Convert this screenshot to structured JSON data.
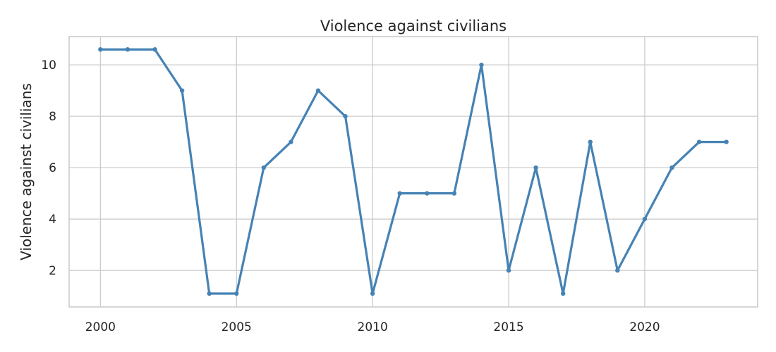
{
  "chart_data": {
    "type": "line",
    "title": "Violence against civilians",
    "xlabel": "",
    "ylabel": "Violence against civilians",
    "xlim": [
      1998.85,
      2024.15
    ],
    "ylim": [
      0.58,
      11.1
    ],
    "xticks": [
      2000,
      2005,
      2010,
      2015,
      2020
    ],
    "yticks": [
      2,
      4,
      6,
      8,
      10
    ],
    "grid": true,
    "color": "#4682b4",
    "x": [
      2000,
      2001,
      2002,
      2003,
      2004,
      2005,
      2006,
      2007,
      2008,
      2009,
      2010,
      2011,
      2012,
      2013,
      2014,
      2015,
      2016,
      2017,
      2018,
      2019,
      2020,
      2021,
      2022,
      2023
    ],
    "y": [
      10.6,
      10.6,
      10.6,
      9,
      1.1,
      1.1,
      6,
      7,
      9,
      8,
      1.1,
      5,
      5,
      5,
      10,
      2,
      6,
      1.1,
      7,
      2,
      4,
      6,
      7,
      7
    ]
  }
}
